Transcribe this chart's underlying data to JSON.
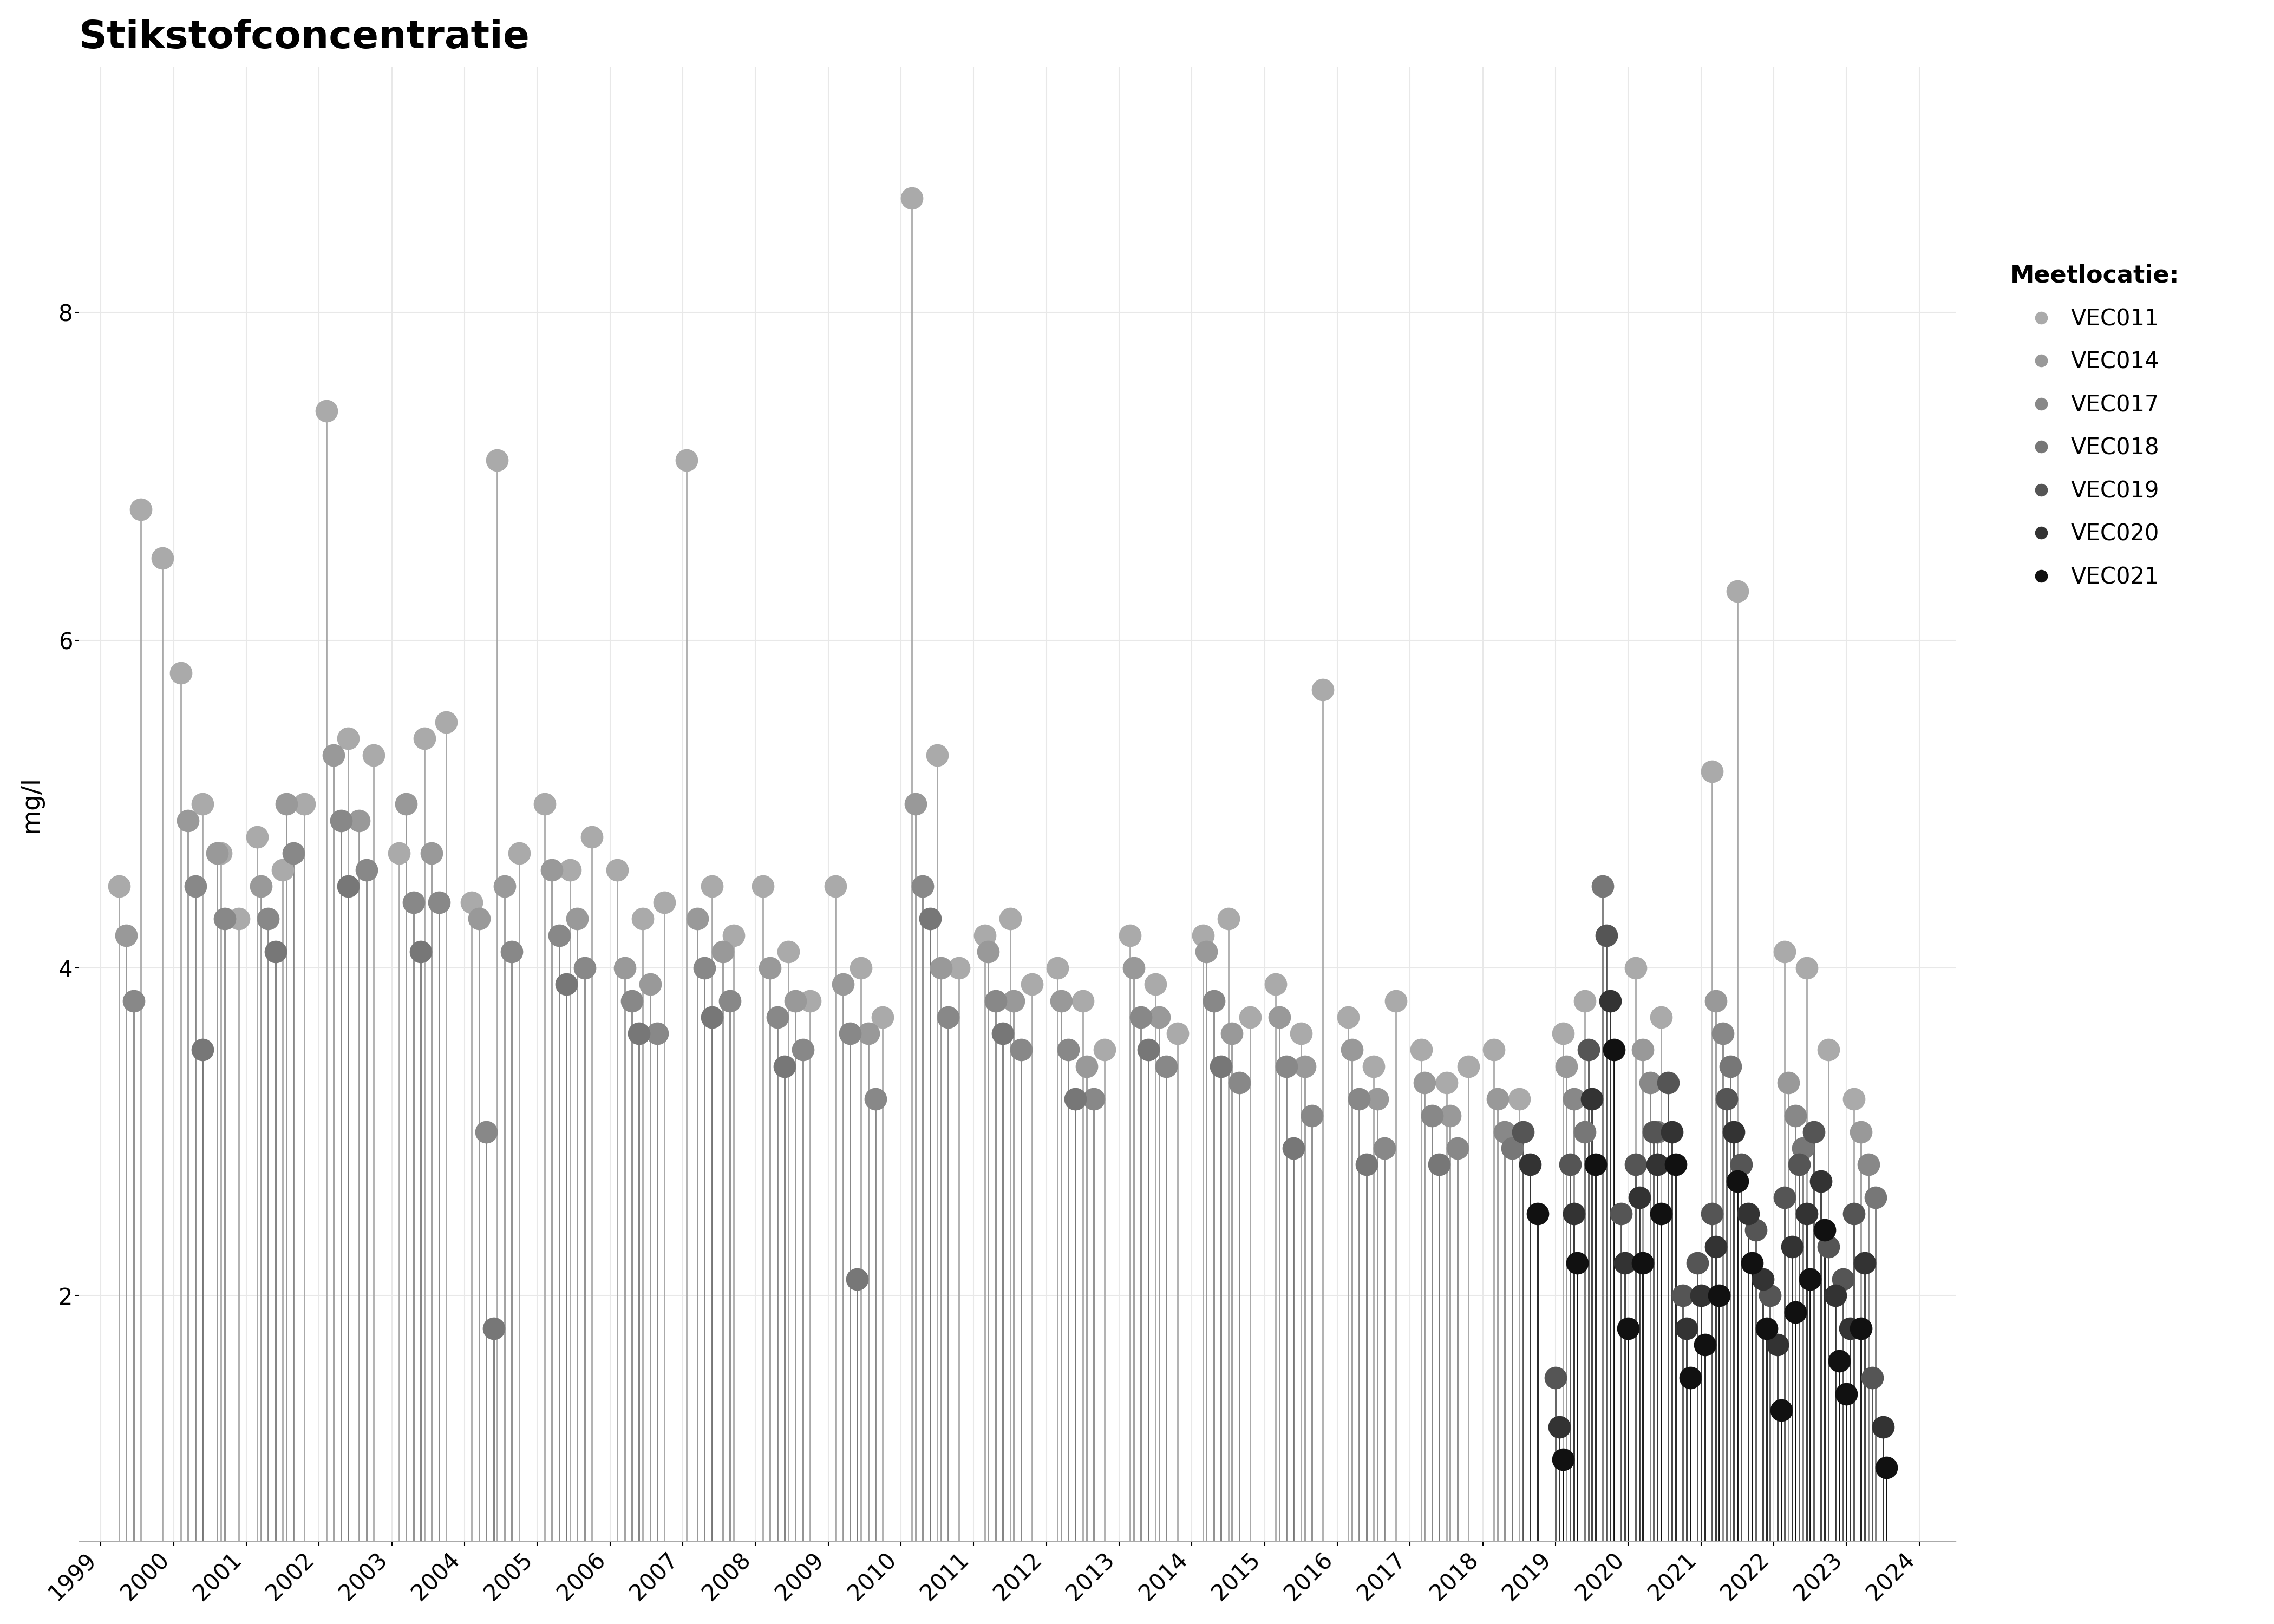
{
  "title": "Stikstofconcentratie",
  "ylabel": "mg/l",
  "background_color": "#ffffff",
  "grid_color": "#e8e8e8",
  "ylim": [
    0.5,
    9.5
  ],
  "yticks": [
    2,
    4,
    6,
    8
  ],
  "xlim_start": 1998.7,
  "xlim_end": 2024.5,
  "title_fontsize": 52,
  "axis_fontsize": 34,
  "tick_fontsize": 30,
  "legend_title": "Meetlocatie:",
  "legend_title_fontsize": 32,
  "legend_fontsize": 30,
  "dot_size": 900,
  "line_width": 2.0,
  "series": [
    {
      "name": "VEC011",
      "color": "#aaaaaa",
      "data": [
        [
          1999.25,
          4.5
        ],
        [
          1999.55,
          6.8
        ],
        [
          1999.85,
          6.5
        ],
        [
          2000.1,
          5.8
        ],
        [
          2000.4,
          5.0
        ],
        [
          2000.65,
          4.7
        ],
        [
          2000.9,
          4.3
        ],
        [
          2001.15,
          4.8
        ],
        [
          2001.5,
          4.6
        ],
        [
          2001.8,
          5.0
        ],
        [
          2002.1,
          7.4
        ],
        [
          2002.4,
          5.4
        ],
        [
          2002.75,
          5.3
        ],
        [
          2003.1,
          4.7
        ],
        [
          2003.45,
          5.4
        ],
        [
          2003.75,
          5.5
        ],
        [
          2004.1,
          4.4
        ],
        [
          2004.45,
          7.1
        ],
        [
          2004.75,
          4.7
        ],
        [
          2005.1,
          5.0
        ],
        [
          2005.45,
          4.6
        ],
        [
          2005.75,
          4.8
        ],
        [
          2006.1,
          4.6
        ],
        [
          2006.45,
          4.3
        ],
        [
          2006.75,
          4.4
        ],
        [
          2007.05,
          7.1
        ],
        [
          2007.4,
          4.5
        ],
        [
          2007.7,
          4.2
        ],
        [
          2008.1,
          4.5
        ],
        [
          2008.45,
          4.1
        ],
        [
          2008.75,
          3.8
        ],
        [
          2009.1,
          4.5
        ],
        [
          2009.45,
          4.0
        ],
        [
          2009.75,
          3.7
        ],
        [
          2010.15,
          8.7
        ],
        [
          2010.5,
          5.3
        ],
        [
          2010.8,
          4.0
        ],
        [
          2011.15,
          4.2
        ],
        [
          2011.5,
          4.3
        ],
        [
          2011.8,
          3.9
        ],
        [
          2012.15,
          4.0
        ],
        [
          2012.5,
          3.8
        ],
        [
          2012.8,
          3.5
        ],
        [
          2013.15,
          4.2
        ],
        [
          2013.5,
          3.9
        ],
        [
          2013.8,
          3.6
        ],
        [
          2014.15,
          4.2
        ],
        [
          2014.5,
          4.3
        ],
        [
          2014.8,
          3.7
        ],
        [
          2015.15,
          3.9
        ],
        [
          2015.5,
          3.6
        ],
        [
          2015.8,
          5.7
        ],
        [
          2016.15,
          3.7
        ],
        [
          2016.5,
          3.4
        ],
        [
          2016.8,
          3.8
        ],
        [
          2017.15,
          3.5
        ],
        [
          2017.5,
          3.3
        ],
        [
          2017.8,
          3.4
        ],
        [
          2018.15,
          3.5
        ],
        [
          2018.5,
          3.2
        ],
        [
          2019.1,
          3.6
        ],
        [
          2019.4,
          3.8
        ],
        [
          2020.1,
          4.0
        ],
        [
          2020.45,
          3.7
        ],
        [
          2021.15,
          5.2
        ],
        [
          2021.5,
          6.3
        ],
        [
          2022.15,
          4.1
        ],
        [
          2022.45,
          4.0
        ],
        [
          2022.75,
          3.5
        ],
        [
          2023.1,
          3.2
        ]
      ]
    },
    {
      "name": "VEC014",
      "color": "#999999",
      "data": [
        [
          1999.35,
          4.2
        ],
        [
          2000.2,
          4.9
        ],
        [
          2000.6,
          4.7
        ],
        [
          2001.2,
          4.5
        ],
        [
          2001.55,
          5.0
        ],
        [
          2002.2,
          5.3
        ],
        [
          2002.55,
          4.9
        ],
        [
          2003.2,
          5.0
        ],
        [
          2003.55,
          4.7
        ],
        [
          2004.2,
          4.3
        ],
        [
          2004.55,
          4.5
        ],
        [
          2005.2,
          4.6
        ],
        [
          2005.55,
          4.3
        ],
        [
          2006.2,
          4.0
        ],
        [
          2006.55,
          3.9
        ],
        [
          2007.2,
          4.3
        ],
        [
          2007.55,
          4.1
        ],
        [
          2008.2,
          4.0
        ],
        [
          2008.55,
          3.8
        ],
        [
          2009.2,
          3.9
        ],
        [
          2009.55,
          3.6
        ],
        [
          2010.2,
          5.0
        ],
        [
          2010.55,
          4.0
        ],
        [
          2011.2,
          4.1
        ],
        [
          2011.55,
          3.8
        ],
        [
          2012.2,
          3.8
        ],
        [
          2012.55,
          3.4
        ],
        [
          2013.2,
          4.0
        ],
        [
          2013.55,
          3.7
        ],
        [
          2014.2,
          4.1
        ],
        [
          2014.55,
          3.6
        ],
        [
          2015.2,
          3.7
        ],
        [
          2015.55,
          3.4
        ],
        [
          2016.2,
          3.5
        ],
        [
          2016.55,
          3.2
        ],
        [
          2017.2,
          3.3
        ],
        [
          2017.55,
          3.1
        ],
        [
          2018.2,
          3.2
        ],
        [
          2019.15,
          3.4
        ],
        [
          2020.2,
          3.5
        ],
        [
          2021.2,
          3.8
        ],
        [
          2022.2,
          3.3
        ],
        [
          2023.2,
          3.0
        ]
      ]
    },
    {
      "name": "VEC017",
      "color": "#888888",
      "data": [
        [
          1999.45,
          3.8
        ],
        [
          2000.3,
          4.5
        ],
        [
          2000.7,
          4.3
        ],
        [
          2001.3,
          4.3
        ],
        [
          2001.65,
          4.7
        ],
        [
          2002.3,
          4.9
        ],
        [
          2002.65,
          4.6
        ],
        [
          2003.3,
          4.4
        ],
        [
          2003.65,
          4.4
        ],
        [
          2004.3,
          3.0
        ],
        [
          2004.65,
          4.1
        ],
        [
          2005.3,
          4.2
        ],
        [
          2005.65,
          4.0
        ],
        [
          2006.3,
          3.8
        ],
        [
          2006.65,
          3.6
        ],
        [
          2007.3,
          4.0
        ],
        [
          2007.65,
          3.8
        ],
        [
          2008.3,
          3.7
        ],
        [
          2008.65,
          3.5
        ],
        [
          2009.3,
          3.6
        ],
        [
          2009.65,
          3.2
        ],
        [
          2010.3,
          4.5
        ],
        [
          2010.65,
          3.7
        ],
        [
          2011.3,
          3.8
        ],
        [
          2011.65,
          3.5
        ],
        [
          2012.3,
          3.5
        ],
        [
          2012.65,
          3.2
        ],
        [
          2013.3,
          3.7
        ],
        [
          2013.65,
          3.4
        ],
        [
          2014.3,
          3.8
        ],
        [
          2014.65,
          3.3
        ],
        [
          2015.3,
          3.4
        ],
        [
          2015.65,
          3.1
        ],
        [
          2016.3,
          3.2
        ],
        [
          2016.65,
          2.9
        ],
        [
          2017.3,
          3.1
        ],
        [
          2017.65,
          2.9
        ],
        [
          2018.3,
          3.0
        ],
        [
          2019.25,
          3.2
        ],
        [
          2020.3,
          3.3
        ],
        [
          2021.3,
          3.6
        ],
        [
          2022.3,
          3.1
        ],
        [
          2023.3,
          2.8
        ]
      ]
    },
    {
      "name": "VEC018",
      "color": "#777777",
      "data": [
        [
          2000.4,
          3.5
        ],
        [
          2001.4,
          4.1
        ],
        [
          2002.4,
          4.5
        ],
        [
          2003.4,
          4.1
        ],
        [
          2004.4,
          1.8
        ],
        [
          2005.4,
          3.9
        ],
        [
          2006.4,
          3.6
        ],
        [
          2007.4,
          3.7
        ],
        [
          2008.4,
          3.4
        ],
        [
          2009.4,
          2.1
        ],
        [
          2010.4,
          4.3
        ],
        [
          2011.4,
          3.6
        ],
        [
          2012.4,
          3.2
        ],
        [
          2013.4,
          3.5
        ],
        [
          2014.4,
          3.4
        ],
        [
          2015.4,
          2.9
        ],
        [
          2016.4,
          2.8
        ],
        [
          2017.4,
          2.8
        ],
        [
          2018.4,
          2.9
        ],
        [
          2019.4,
          3.0
        ],
        [
          2019.65,
          4.5
        ],
        [
          2020.4,
          3.0
        ],
        [
          2021.4,
          3.4
        ],
        [
          2022.4,
          2.9
        ],
        [
          2023.4,
          2.6
        ]
      ]
    },
    {
      "name": "VEC019",
      "color": "#555555",
      "data": [
        [
          2018.55,
          3.0
        ],
        [
          2019.0,
          1.5
        ],
        [
          2019.2,
          2.8
        ],
        [
          2019.45,
          3.5
        ],
        [
          2019.7,
          4.2
        ],
        [
          2019.9,
          2.5
        ],
        [
          2020.1,
          2.8
        ],
        [
          2020.35,
          3.0
        ],
        [
          2020.55,
          3.3
        ],
        [
          2020.75,
          2.0
        ],
        [
          2020.95,
          2.2
        ],
        [
          2021.15,
          2.5
        ],
        [
          2021.35,
          3.2
        ],
        [
          2021.55,
          2.8
        ],
        [
          2021.75,
          2.4
        ],
        [
          2021.95,
          2.0
        ],
        [
          2022.15,
          2.6
        ],
        [
          2022.35,
          2.8
        ],
        [
          2022.55,
          3.0
        ],
        [
          2022.75,
          2.3
        ],
        [
          2022.95,
          2.1
        ],
        [
          2023.1,
          2.5
        ],
        [
          2023.35,
          1.5
        ]
      ]
    },
    {
      "name": "VEC020",
      "color": "#333333",
      "data": [
        [
          2018.65,
          2.8
        ],
        [
          2019.05,
          1.2
        ],
        [
          2019.25,
          2.5
        ],
        [
          2019.5,
          3.2
        ],
        [
          2019.75,
          3.8
        ],
        [
          2019.95,
          2.2
        ],
        [
          2020.15,
          2.6
        ],
        [
          2020.4,
          2.8
        ],
        [
          2020.6,
          3.0
        ],
        [
          2020.8,
          1.8
        ],
        [
          2021.0,
          2.0
        ],
        [
          2021.2,
          2.3
        ],
        [
          2021.45,
          3.0
        ],
        [
          2021.65,
          2.5
        ],
        [
          2021.85,
          2.1
        ],
        [
          2022.05,
          1.7
        ],
        [
          2022.25,
          2.3
        ],
        [
          2022.45,
          2.5
        ],
        [
          2022.65,
          2.7
        ],
        [
          2022.85,
          2.0
        ],
        [
          2023.05,
          1.8
        ],
        [
          2023.25,
          2.2
        ],
        [
          2023.5,
          1.2
        ]
      ]
    },
    {
      "name": "VEC021",
      "color": "#111111",
      "data": [
        [
          2018.75,
          2.5
        ],
        [
          2019.1,
          1.0
        ],
        [
          2019.3,
          2.2
        ],
        [
          2019.55,
          2.8
        ],
        [
          2019.8,
          3.5
        ],
        [
          2020.0,
          1.8
        ],
        [
          2020.2,
          2.2
        ],
        [
          2020.45,
          2.5
        ],
        [
          2020.65,
          2.8
        ],
        [
          2020.85,
          1.5
        ],
        [
          2021.05,
          1.7
        ],
        [
          2021.25,
          2.0
        ],
        [
          2021.5,
          2.7
        ],
        [
          2021.7,
          2.2
        ],
        [
          2021.9,
          1.8
        ],
        [
          2022.1,
          1.3
        ],
        [
          2022.3,
          1.9
        ],
        [
          2022.5,
          2.1
        ],
        [
          2022.7,
          2.4
        ],
        [
          2022.9,
          1.6
        ],
        [
          2023.0,
          1.4
        ],
        [
          2023.2,
          1.8
        ],
        [
          2023.55,
          0.95
        ]
      ]
    }
  ]
}
